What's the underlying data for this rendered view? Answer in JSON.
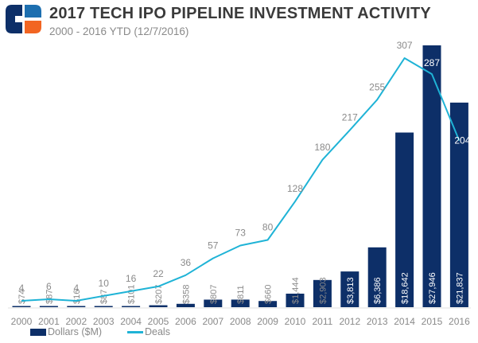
{
  "header": {
    "title": "2017 TECH IPO PIPELINE INVESTMENT ACTIVITY",
    "subtitle": "2000 - 2016 YTD (12/7/2016)"
  },
  "colors": {
    "bar": "#0d2f68",
    "line": "#1fb3d6",
    "logo_blue": "#0d2f68",
    "logo_light_blue": "#1d6fb0",
    "logo_orange": "#f26522",
    "label_gray": "#8a8a8a"
  },
  "chart_data": {
    "type": "bar+line",
    "title": "2017 TECH IPO PIPELINE INVESTMENT ACTIVITY",
    "subtitle": "2000 - 2016 YTD (12/7/2016)",
    "categories": [
      "2000",
      "2001",
      "2002",
      "2003",
      "2004",
      "2005",
      "2006",
      "2007",
      "2008",
      "2009",
      "2010",
      "2011",
      "2012",
      "2013",
      "2014",
      "2015",
      "2016"
    ],
    "series": [
      {
        "name": "Dollars ($M)",
        "type": "bar",
        "values": [
          74,
          87,
          16,
          87,
          101,
          207,
          358,
          807,
          811,
          660,
          1444,
          2903,
          3813,
          6386,
          18642,
          27946,
          21837
        ],
        "labels": [
          "$74",
          "$87",
          "$16",
          "$87",
          "$101",
          "$207",
          "$358",
          "$807",
          "$811",
          "$660",
          "$1,444",
          "$2,903",
          "$3,813",
          "$6,386",
          "$18,642",
          "$27,946",
          "$21,837"
        ]
      },
      {
        "name": "Deals",
        "type": "line",
        "values": [
          4,
          6,
          4,
          10,
          16,
          22,
          36,
          57,
          73,
          80,
          128,
          180,
          217,
          255,
          307,
          287,
          204
        ]
      }
    ],
    "xlabel": "",
    "ylabel": "",
    "legend": "bottom-left",
    "grid": false
  }
}
